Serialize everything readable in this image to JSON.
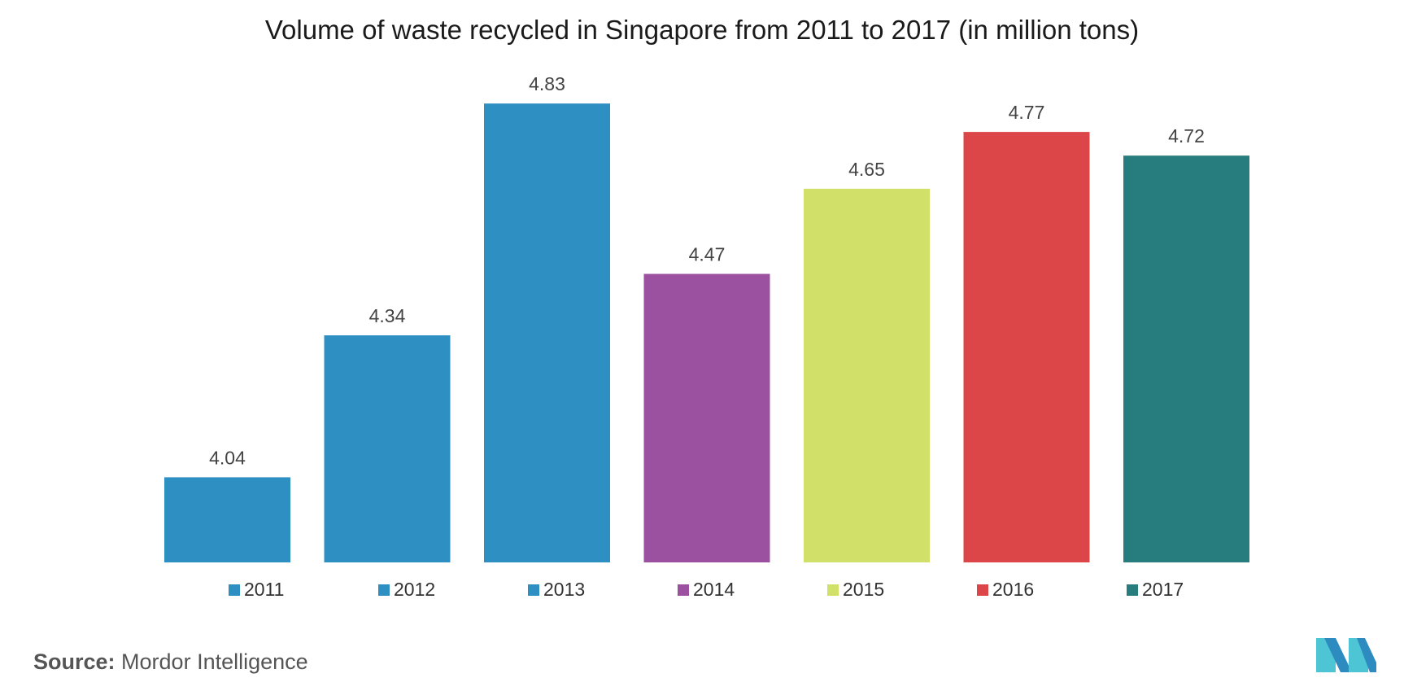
{
  "title": "Volume of waste recycled in Singapore from 2011 to 2017 (in million tons)",
  "source": {
    "key": "Source:",
    "value": "Mordor Intelligence"
  },
  "logo": {
    "icon": "mordor-intelligence-logo",
    "colors": [
      "#2e8bc0",
      "#4ec5d4"
    ]
  },
  "chart_data": {
    "type": "bar",
    "title": "Volume of waste recycled in Singapore from 2011 to 2017 (in million tons)",
    "categories": [
      "2011",
      "2012",
      "2013",
      "2014",
      "2015",
      "2016",
      "2017"
    ],
    "values": [
      4.04,
      4.34,
      4.83,
      4.47,
      4.65,
      4.77,
      4.72
    ],
    "value_labels": [
      "4.04",
      "4.34",
      "4.83",
      "4.47",
      "4.65",
      "4.77",
      "4.72"
    ],
    "colors": [
      "#2e8fc2",
      "#2e8fc2",
      "#2e8fc2",
      "#9b51a0",
      "#d1e068",
      "#dd4649",
      "#277c7d"
    ],
    "ylim": [
      3.86,
      4.87
    ],
    "grid": false,
    "legend": "bottom",
    "xlabel": "",
    "ylabel": ""
  }
}
